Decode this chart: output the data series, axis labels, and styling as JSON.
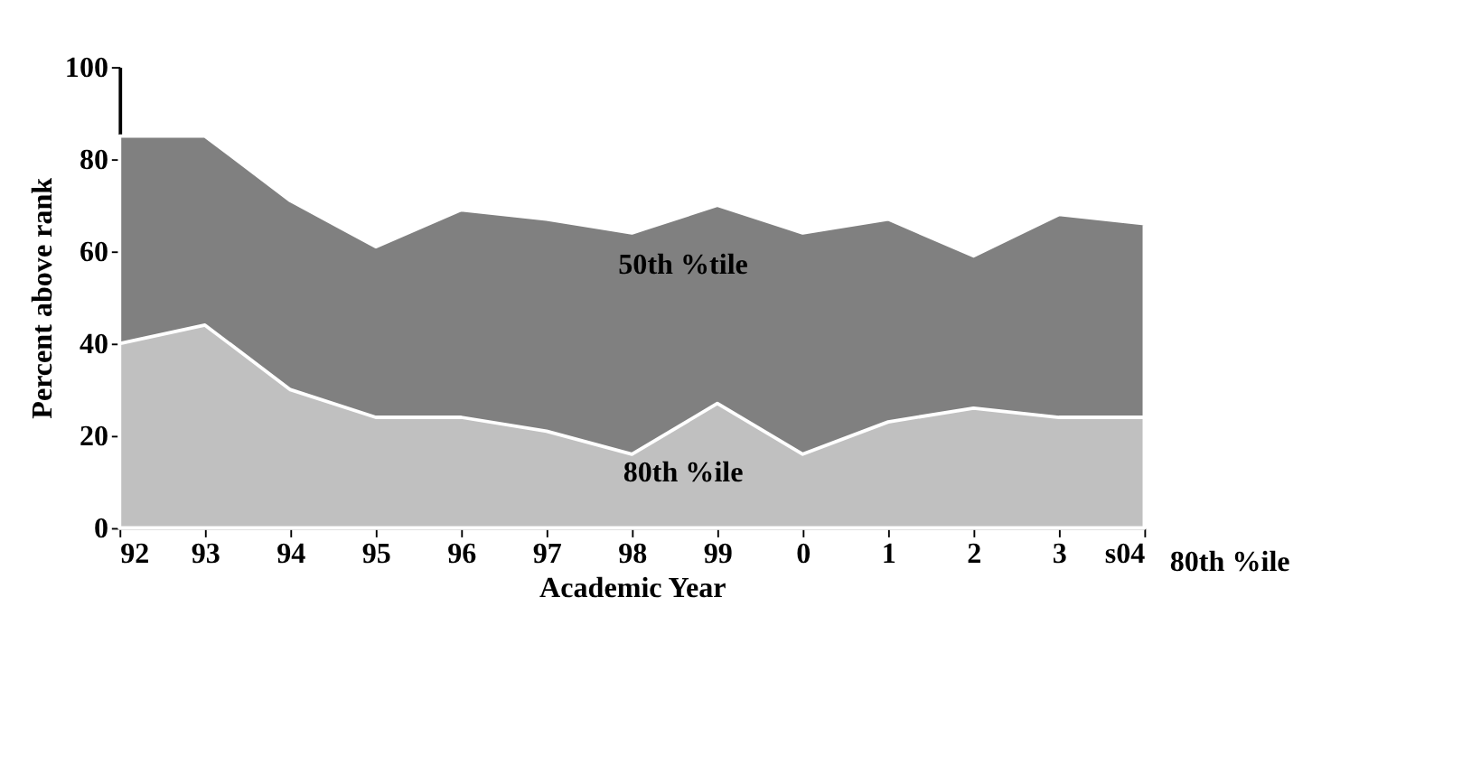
{
  "chart_data": {
    "type": "area",
    "xlabel": "Academic Year",
    "ylabel": "Percent above rank",
    "categories": [
      "92",
      "93",
      "94",
      "95",
      "96",
      "97",
      "98",
      "99",
      "0",
      "1",
      "2",
      "3",
      "s04"
    ],
    "series": [
      {
        "name": "50th %tile",
        "color": "#808080",
        "values": [
          85,
          85,
          71,
          61,
          69,
          67,
          64,
          70,
          64,
          67,
          59,
          68,
          66
        ]
      },
      {
        "name": "80th %ile",
        "color": "#c0c0c0",
        "values": [
          40,
          44,
          30,
          24,
          24,
          21,
          16,
          27,
          16,
          23,
          26,
          24,
          24
        ]
      }
    ],
    "ylim": [
      0,
      100
    ],
    "yticks": [
      0,
      20,
      40,
      60,
      80,
      100
    ],
    "grid": false,
    "annotations": [
      "80th %ile"
    ]
  }
}
